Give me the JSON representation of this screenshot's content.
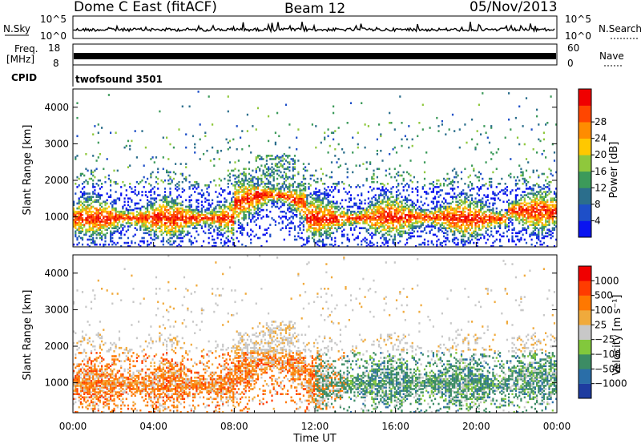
{
  "header": {
    "station": "Dome C East (fitACF)",
    "beam": "Beam 12",
    "date": "05/Nov/2013"
  },
  "panels": {
    "nsky": {
      "label": "N.Sky",
      "top_tick": "10^5",
      "bottom_tick": "10^0",
      "right_label": "N.Search",
      "right_top_tick": "10^5",
      "right_bottom_tick": "10^0"
    },
    "freq": {
      "label_line1": "Freq.",
      "label_line2": "[MHz]",
      "top_tick": "18",
      "bottom_tick": "8",
      "right_label": "Nave",
      "right_top_tick": "60",
      "right_bottom_tick": "0"
    },
    "cpid": {
      "label": "CPID",
      "program": "twofsound 3501"
    }
  },
  "chart_data": [
    {
      "type": "heatmap",
      "quantity": "Power",
      "ylabel": "Slant Range [km]",
      "ylim": [
        180,
        4500
      ],
      "yticks": [
        1000,
        2000,
        3000,
        4000
      ],
      "xlim": [
        0,
        24
      ],
      "colorbar": {
        "label": "Power [dB]",
        "range": [
          0,
          32
        ],
        "ticks": [
          "4",
          "8",
          "12",
          "16",
          "20",
          "24",
          "28"
        ],
        "colors": [
          "#0a14f0",
          "#1e4fc8",
          "#2b6e8c",
          "#3c9a5a",
          "#8fc83c",
          "#ffc800",
          "#ff8c00",
          "#ff4600",
          "#f00000"
        ]
      }
    },
    {
      "type": "heatmap",
      "quantity": "Velocity",
      "ylabel": "Slant Range [km]",
      "ylim": [
        180,
        4500
      ],
      "yticks": [
        1000,
        2000,
        3000,
        4000
      ],
      "xlim": [
        0,
        24
      ],
      "xlabel": "Time UT",
      "xticks": [
        "00:00",
        "04:00",
        "08:00",
        "12:00",
        "16:00",
        "20:00",
        "00:00"
      ],
      "colorbar": {
        "label": "Velocity [m s⁻¹]",
        "ticks": [
          "1000",
          "500",
          "100",
          "25",
          "−25",
          "−100",
          "−500",
          "−1000"
        ],
        "colors": [
          "#1e3ca0",
          "#2a6ea8",
          "#3c8c64",
          "#82c83c",
          "#c8c8c8",
          "#f0aa3c",
          "#ff7800",
          "#ff3c00",
          "#f00000"
        ]
      }
    }
  ]
}
